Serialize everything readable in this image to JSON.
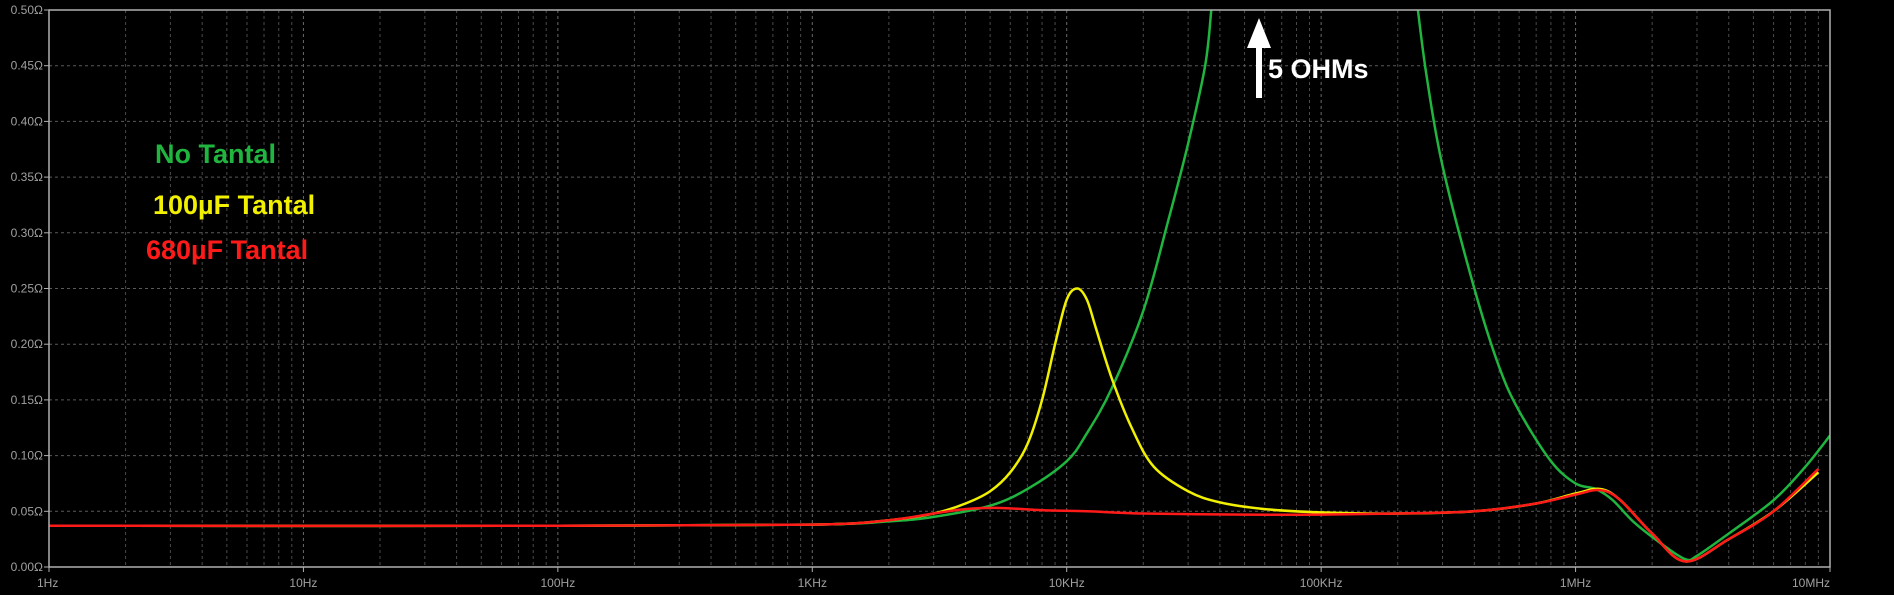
{
  "chart_data": {
    "type": "line",
    "title": "",
    "xlabel": "",
    "ylabel": "",
    "x_scale": "log",
    "xlim": [
      1,
      10000000
    ],
    "ylim": [
      0,
      0.5
    ],
    "grid": true,
    "legend_placement": "top-left",
    "x_ticks": [
      {
        "value": 1,
        "label": "1Hz"
      },
      {
        "value": 10,
        "label": "10Hz"
      },
      {
        "value": 100,
        "label": "100Hz"
      },
      {
        "value": 1000,
        "label": "1KHz"
      },
      {
        "value": 10000,
        "label": "10KHz"
      },
      {
        "value": 100000,
        "label": "100KHz"
      },
      {
        "value": 1000000,
        "label": "1MHz"
      },
      {
        "value": 10000000,
        "label": "10MHz"
      }
    ],
    "y_ticks": [
      {
        "value": 0.0,
        "label": "0.00Ω"
      },
      {
        "value": 0.05,
        "label": "0.05Ω"
      },
      {
        "value": 0.1,
        "label": "0.10Ω"
      },
      {
        "value": 0.15,
        "label": "0.15Ω"
      },
      {
        "value": 0.2,
        "label": "0.20Ω"
      },
      {
        "value": 0.25,
        "label": "0.25Ω"
      },
      {
        "value": 0.3,
        "label": "0.30Ω"
      },
      {
        "value": 0.35,
        "label": "0.35Ω"
      },
      {
        "value": 0.4,
        "label": "0.40Ω"
      },
      {
        "value": 0.45,
        "label": "0.45Ω"
      },
      {
        "value": 0.5,
        "label": "0.50Ω"
      }
    ],
    "series": [
      {
        "name": "No Tantal",
        "color": "#1fb53f",
        "points": [
          [
            1,
            0.037
          ],
          [
            100,
            0.037
          ],
          [
            1000,
            0.038
          ],
          [
            2000,
            0.041
          ],
          [
            3000,
            0.045
          ],
          [
            5000,
            0.055
          ],
          [
            7000,
            0.07
          ],
          [
            10000,
            0.095
          ],
          [
            12000,
            0.12
          ],
          [
            15000,
            0.16
          ],
          [
            20000,
            0.23
          ],
          [
            25000,
            0.31
          ],
          [
            30000,
            0.38
          ],
          [
            35000,
            0.45
          ],
          [
            37000,
            0.5
          ]
        ]
      },
      {
        "name": "No Tantal",
        "color": "#1fb53f",
        "points": [
          [
            240000,
            0.5
          ],
          [
            260000,
            0.44
          ],
          [
            300000,
            0.36
          ],
          [
            400000,
            0.25
          ],
          [
            500000,
            0.18
          ],
          [
            600000,
            0.14
          ],
          [
            800000,
            0.095
          ],
          [
            1000000,
            0.075
          ],
          [
            1200000,
            0.07
          ],
          [
            1400000,
            0.06
          ],
          [
            1700000,
            0.04
          ],
          [
            2200000,
            0.02
          ],
          [
            2700000,
            0.007
          ],
          [
            3000000,
            0.01
          ],
          [
            4000000,
            0.03
          ],
          [
            6000000,
            0.06
          ],
          [
            8000000,
            0.09
          ],
          [
            10000000,
            0.118
          ]
        ]
      },
      {
        "name": "100µF Tantal",
        "color": "#f0f000",
        "points": [
          [
            1,
            0.037
          ],
          [
            100,
            0.037
          ],
          [
            1000,
            0.038
          ],
          [
            2000,
            0.042
          ],
          [
            3000,
            0.048
          ],
          [
            4000,
            0.057
          ],
          [
            5000,
            0.068
          ],
          [
            6000,
            0.085
          ],
          [
            7000,
            0.11
          ],
          [
            8000,
            0.15
          ],
          [
            9000,
            0.2
          ],
          [
            10000,
            0.24
          ],
          [
            11000,
            0.25
          ],
          [
            12000,
            0.24
          ],
          [
            13000,
            0.215
          ],
          [
            15000,
            0.17
          ],
          [
            18000,
            0.125
          ],
          [
            22000,
            0.09
          ],
          [
            30000,
            0.068
          ],
          [
            40000,
            0.058
          ],
          [
            60000,
            0.052
          ],
          [
            100000,
            0.049
          ],
          [
            200000,
            0.048
          ],
          [
            400000,
            0.05
          ],
          [
            700000,
            0.057
          ],
          [
            1000000,
            0.066
          ],
          [
            1250000,
            0.07
          ],
          [
            1500000,
            0.06
          ],
          [
            2000000,
            0.03
          ],
          [
            2700000,
            0.005
          ],
          [
            4000000,
            0.025
          ],
          [
            6000000,
            0.05
          ],
          [
            9000000,
            0.085
          ]
        ]
      },
      {
        "name": "680µF Tantal",
        "color": "#ff1a1a",
        "points": [
          [
            1,
            0.037
          ],
          [
            100,
            0.037
          ],
          [
            1000,
            0.038
          ],
          [
            2000,
            0.042
          ],
          [
            3000,
            0.048
          ],
          [
            4000,
            0.052
          ],
          [
            5500,
            0.053
          ],
          [
            8000,
            0.051
          ],
          [
            12000,
            0.05
          ],
          [
            20000,
            0.048
          ],
          [
            50000,
            0.047
          ],
          [
            100000,
            0.047
          ],
          [
            200000,
            0.048
          ],
          [
            400000,
            0.05
          ],
          [
            700000,
            0.057
          ],
          [
            1000000,
            0.065
          ],
          [
            1250000,
            0.069
          ],
          [
            1500000,
            0.06
          ],
          [
            2000000,
            0.03
          ],
          [
            2700000,
            0.005
          ],
          [
            4000000,
            0.025
          ],
          [
            6000000,
            0.05
          ],
          [
            9000000,
            0.088
          ]
        ]
      }
    ],
    "legend": [
      {
        "label": "No Tantal",
        "color": "#1fb53f"
      },
      {
        "label": "100µF Tantal",
        "color": "#f0f000"
      },
      {
        "label": "680µF Tantal",
        "color": "#ff1a1a"
      }
    ],
    "annotation": {
      "text": "5 OHMs",
      "color": "#ffffff"
    }
  }
}
